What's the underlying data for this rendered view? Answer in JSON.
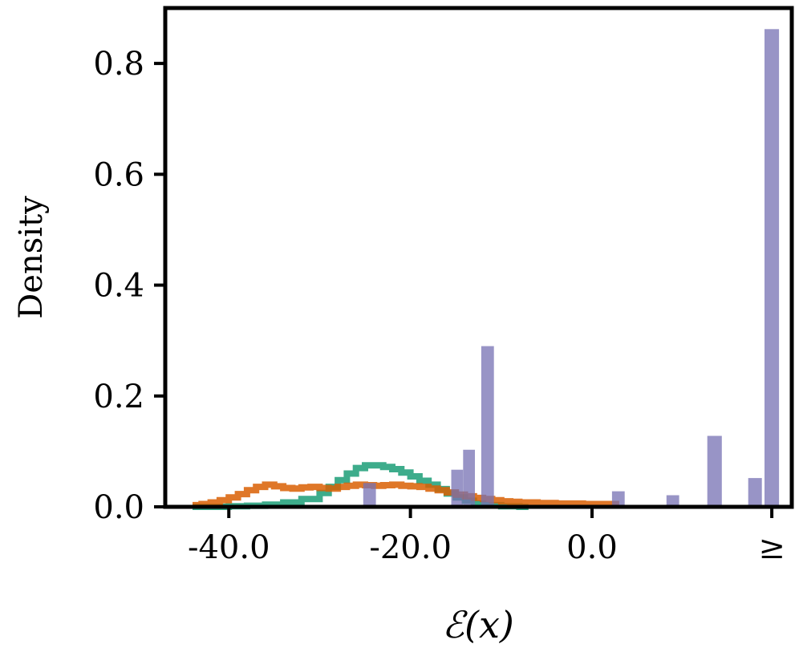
{
  "chart_data": {
    "type": "bar",
    "title": "",
    "xlabel": "ℰ(x)",
    "ylabel": "Density",
    "xlim": [
      -47,
      4
    ],
    "ylim": [
      0,
      0.9
    ],
    "grid": false,
    "legend": "none",
    "x_ticks": [
      {
        "value": -40,
        "label": "-40.0"
      },
      {
        "value": -20,
        "label": "-20.0"
      },
      {
        "value": 0,
        "label": "0.0"
      },
      {
        "value": 2,
        "label": "≥"
      }
    ],
    "y_ticks": [
      {
        "value": 0.0,
        "label": "0.0"
      },
      {
        "value": 0.2,
        "label": "0.2"
      },
      {
        "value": 0.4,
        "label": "0.4"
      },
      {
        "value": 0.6,
        "label": "0.6"
      },
      {
        "value": 0.8,
        "label": "0.8"
      }
    ],
    "series": [
      {
        "kind": "step",
        "color": "#1b9e77",
        "x": [
          -44,
          -42,
          -40,
          -38,
          -36,
          -34,
          -32,
          -30,
          -29,
          -28,
          -27,
          -26,
          -25,
          -24,
          -23,
          -22,
          -21,
          -20,
          -19,
          -18,
          -17,
          -16,
          -15,
          -14,
          -13,
          -12,
          -10,
          -8
        ],
        "y": [
          0.0,
          0.0,
          0.001,
          0.002,
          0.004,
          0.008,
          0.014,
          0.025,
          0.036,
          0.048,
          0.06,
          0.07,
          0.075,
          0.075,
          0.072,
          0.068,
          0.062,
          0.055,
          0.047,
          0.04,
          0.032,
          0.024,
          0.017,
          0.011,
          0.006,
          0.003,
          0.001,
          0.0
        ]
      },
      {
        "kind": "step",
        "color": "#d95f02",
        "x": [
          -44,
          -43,
          -42,
          -41,
          -40,
          -39,
          -38,
          -37,
          -36,
          -35,
          -34,
          -33,
          -32,
          -31,
          -30,
          -29,
          -28,
          -27,
          -26,
          -25,
          -24,
          -23,
          -22,
          -21,
          -20,
          -19,
          -18,
          -17,
          -16,
          -15,
          -14,
          -13,
          -12,
          -11,
          -10,
          -9,
          -8,
          -7,
          -6,
          -5,
          -4,
          -3,
          -2,
          -1,
          0,
          1,
          2
        ],
        "y": [
          0.003,
          0.005,
          0.008,
          0.012,
          0.017,
          0.023,
          0.03,
          0.036,
          0.04,
          0.037,
          0.034,
          0.033,
          0.035,
          0.036,
          0.034,
          0.033,
          0.036,
          0.038,
          0.04,
          0.039,
          0.038,
          0.039,
          0.04,
          0.038,
          0.037,
          0.036,
          0.033,
          0.03,
          0.026,
          0.022,
          0.019,
          0.016,
          0.014,
          0.012,
          0.01,
          0.009,
          0.008,
          0.008,
          0.007,
          0.007,
          0.006,
          0.006,
          0.006,
          0.005,
          0.005,
          0.005,
          0.005
        ]
      },
      {
        "kind": "bars",
        "color": "#7570b3",
        "opacity": 0.75,
        "bars": [
          {
            "x0": -25.2,
            "x1": -23.8,
            "y": 0.043
          },
          {
            "x0": -15.5,
            "x1": -14.2,
            "y": 0.067
          },
          {
            "x0": -14.2,
            "x1": -12.9,
            "y": 0.103
          },
          {
            "x0": -12.2,
            "x1": -10.8,
            "y": 0.29
          },
          {
            "x0": 2.2,
            "x1": 3.6,
            "y": 0.028
          },
          {
            "x0": 8.2,
            "x1": 9.6,
            "y": 0.021
          },
          {
            "x0": 12.7,
            "x1": 14.3,
            "y": 0.128
          },
          {
            "x0": 17.2,
            "x1": 18.7,
            "y": 0.052
          },
          {
            "x0": 19.0,
            "x1": 20.6,
            "y": 0.862
          }
        ]
      }
    ]
  }
}
